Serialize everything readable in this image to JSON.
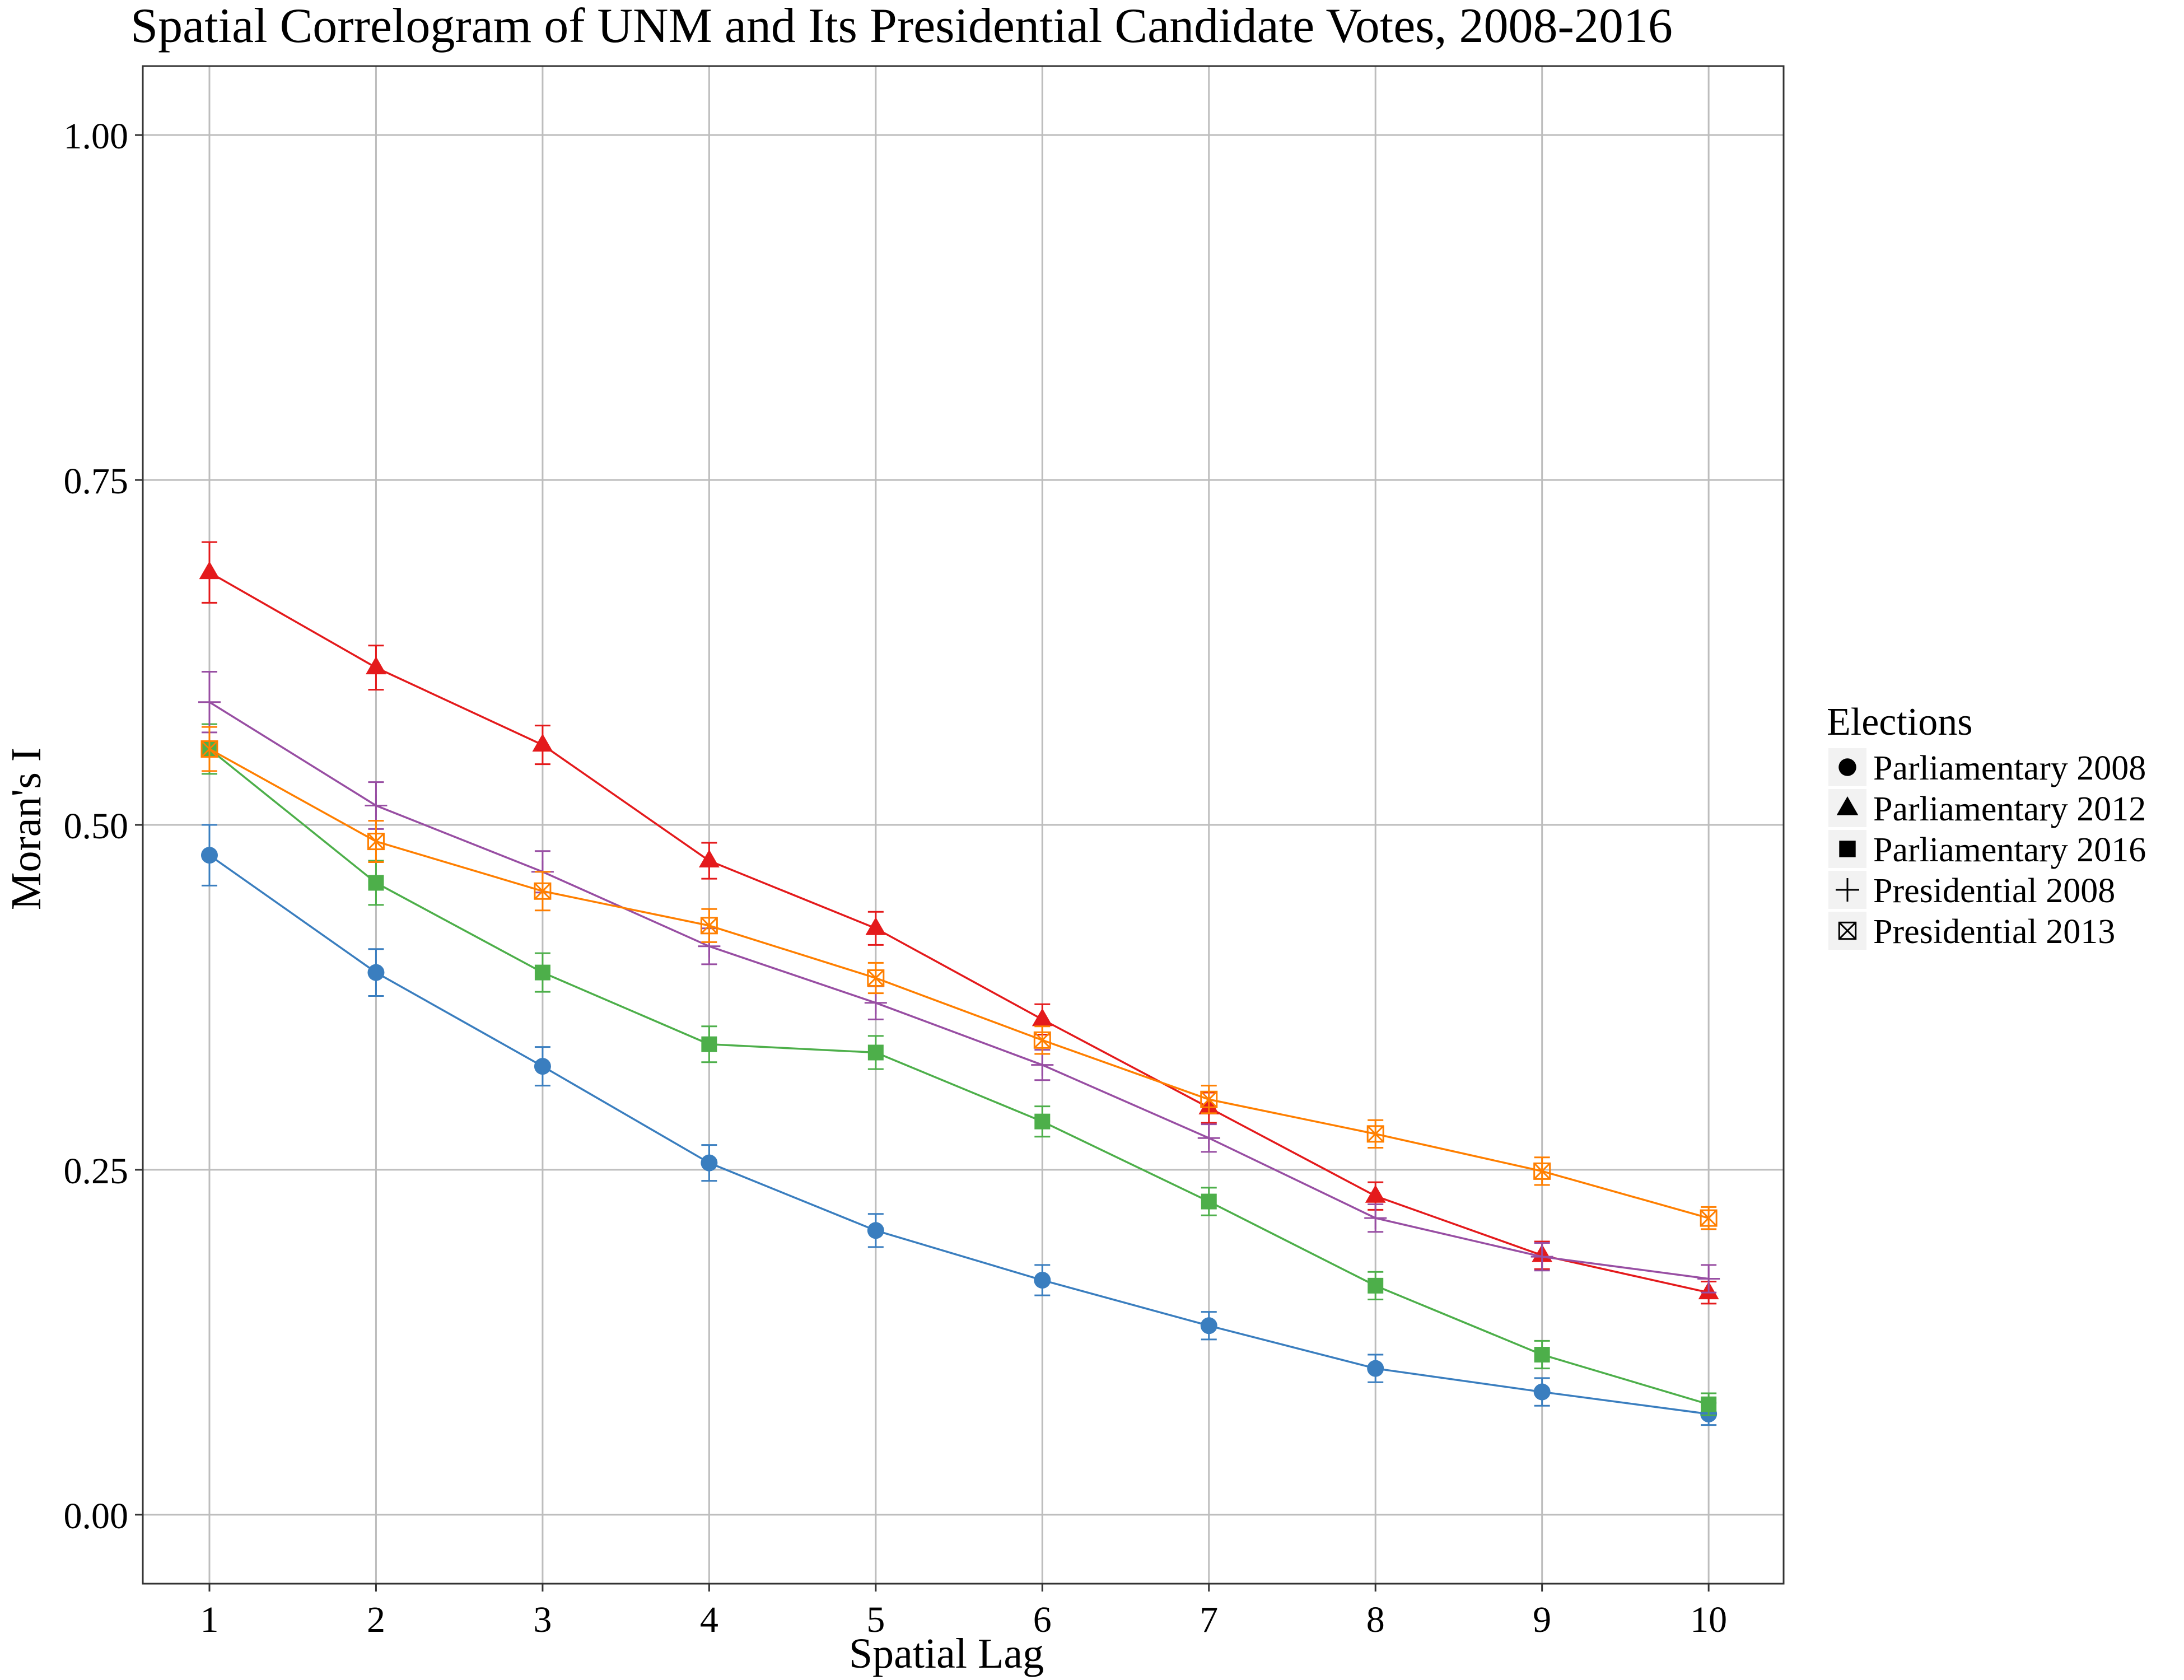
{
  "chart_data": {
    "type": "line",
    "title": "Spatial Correlogram of UNM and Its Presidential Candidate Votes, 2008-2016",
    "xlabel": "Spatial Lag",
    "ylabel": "Moran's I",
    "x": [
      1,
      2,
      3,
      4,
      5,
      6,
      7,
      8,
      9,
      10
    ],
    "x_ticks": [
      "1",
      "2",
      "3",
      "4",
      "5",
      "6",
      "7",
      "8",
      "9",
      "10"
    ],
    "y_ticks": [
      "0.00",
      "0.25",
      "0.50",
      "0.75",
      "1.00"
    ],
    "y_tick_values": [
      0,
      0.25,
      0.5,
      0.75,
      1.0
    ],
    "xlim": [
      0.6,
      10.45
    ],
    "ylim": [
      -0.05,
      1.05
    ],
    "grid": true,
    "legend": {
      "title": "Elections",
      "placement": "right"
    },
    "series": [
      {
        "name": "Parliamentary 2008",
        "color": "#3a7ebf",
        "marker": "circle",
        "values": [
          0.478,
          0.393,
          0.325,
          0.255,
          0.206,
          0.17,
          0.137,
          0.106,
          0.089,
          0.073
        ],
        "err": [
          0.022,
          0.017,
          0.014,
          0.013,
          0.012,
          0.011,
          0.01,
          0.01,
          0.01,
          0.008
        ]
      },
      {
        "name": "Parliamentary 2012",
        "color": "#e41a1c",
        "marker": "triangle",
        "values": [
          0.683,
          0.614,
          0.558,
          0.474,
          0.425,
          0.359,
          0.295,
          0.231,
          0.188,
          0.161
        ],
        "err": [
          0.022,
          0.016,
          0.014,
          0.013,
          0.012,
          0.011,
          0.011,
          0.01,
          0.01,
          0.008
        ]
      },
      {
        "name": "Parliamentary 2016",
        "color": "#4daf4a",
        "marker": "square",
        "values": [
          0.555,
          0.458,
          0.393,
          0.341,
          0.335,
          0.285,
          0.227,
          0.166,
          0.116,
          0.08
        ],
        "err": [
          0.018,
          0.016,
          0.014,
          0.013,
          0.012,
          0.011,
          0.01,
          0.01,
          0.01,
          0.008
        ]
      },
      {
        "name": "Presidential 2008",
        "color": "#984ea3",
        "marker": "plus",
        "values": [
          0.589,
          0.514,
          0.466,
          0.412,
          0.371,
          0.326,
          0.273,
          0.215,
          0.187,
          0.171
        ],
        "err": [
          0.022,
          0.017,
          0.015,
          0.013,
          0.012,
          0.011,
          0.01,
          0.01,
          0.01,
          0.01
        ]
      },
      {
        "name": "Presidential 2013",
        "color": "#ff7f00",
        "marker": "square-x",
        "values": [
          0.555,
          0.488,
          0.452,
          0.427,
          0.389,
          0.344,
          0.301,
          0.276,
          0.249,
          0.215
        ],
        "err": [
          0.016,
          0.015,
          0.014,
          0.012,
          0.011,
          0.01,
          0.01,
          0.01,
          0.01,
          0.008
        ]
      }
    ]
  },
  "colors": {
    "grid": "#bdbdbd",
    "panel_border": "#333333",
    "text": "#000000",
    "legend_key_bg": "#f2f2f2"
  }
}
